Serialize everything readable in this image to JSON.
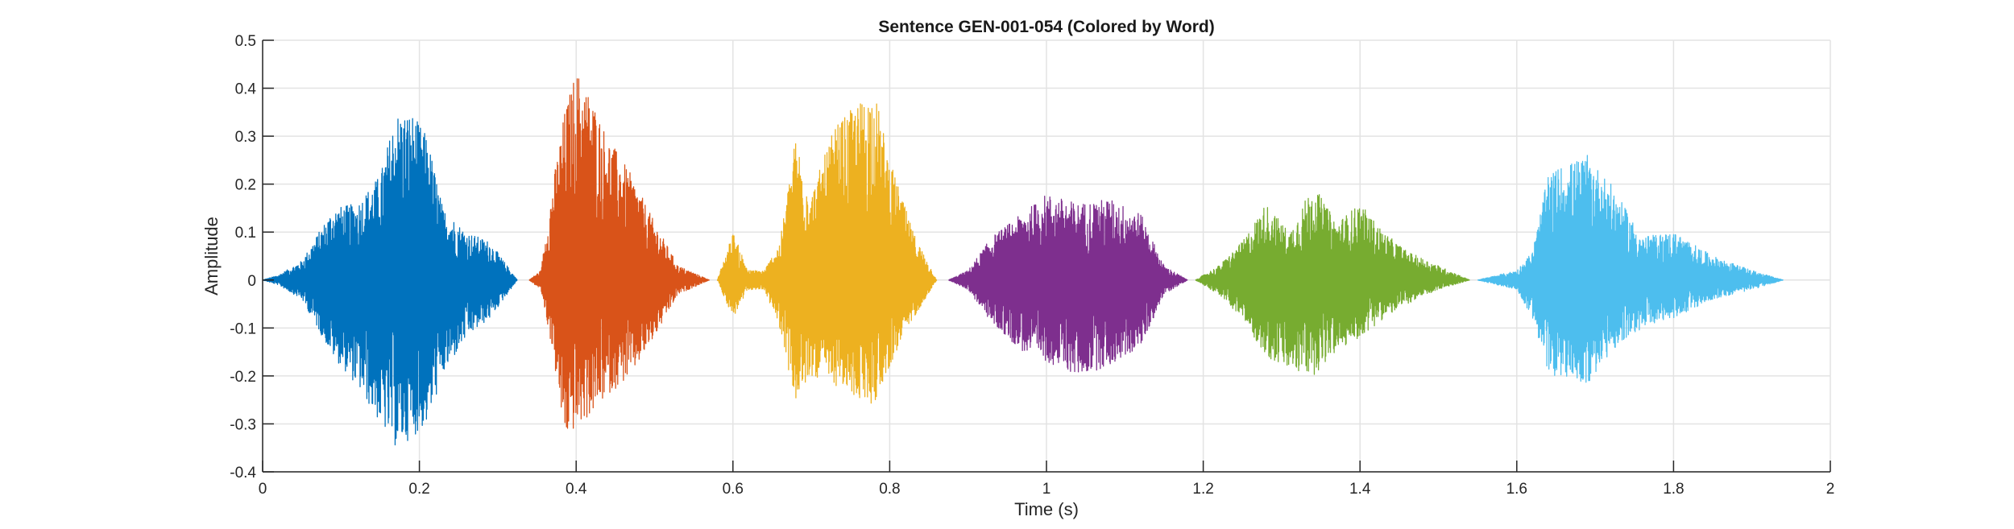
{
  "chart_data": {
    "type": "line",
    "title": "Sentence GEN-001-054 (Colored by Word)",
    "xlabel": "Time (s)",
    "ylabel": "Amplitude",
    "xlim": [
      0,
      2
    ],
    "ylim": [
      -0.4,
      0.5
    ],
    "xticks": [
      0,
      0.2,
      0.4,
      0.6,
      0.8,
      1,
      1.2,
      1.4,
      1.6,
      1.8,
      2
    ],
    "xtick_labels": [
      "0",
      "0.2",
      "0.4",
      "0.6",
      "0.8",
      "1",
      "1.2",
      "1.4",
      "1.6",
      "1.8",
      "2"
    ],
    "yticks": [
      -0.4,
      -0.3,
      -0.2,
      -0.1,
      0,
      0.1,
      0.2,
      0.3,
      0.4,
      0.5
    ],
    "ytick_labels": [
      "-0.4",
      "-0.3",
      "-0.2",
      "-0.1",
      "0",
      "0.1",
      "0.2",
      "0.3",
      "0.4",
      "0.5"
    ],
    "grid": true,
    "legend": "none",
    "series": [
      {
        "color": "#0072BD",
        "start": 0.0,
        "end": 0.325,
        "envelope_t": [
          0.0,
          0.02,
          0.05,
          0.09,
          0.12,
          0.15,
          0.17,
          0.19,
          0.21,
          0.23,
          0.26,
          0.29,
          0.325
        ],
        "envelope_pos": [
          0.0,
          0.01,
          0.04,
          0.15,
          0.16,
          0.22,
          0.35,
          0.35,
          0.3,
          0.15,
          0.1,
          0.08,
          0.0
        ],
        "envelope_neg": [
          0.0,
          -0.01,
          -0.04,
          -0.16,
          -0.22,
          -0.3,
          -0.35,
          -0.33,
          -0.3,
          -0.2,
          -0.12,
          -0.08,
          0.0
        ]
      },
      {
        "color": "#D95319",
        "start": 0.34,
        "end": 0.57,
        "envelope_t": [
          0.34,
          0.355,
          0.37,
          0.385,
          0.4,
          0.42,
          0.44,
          0.47,
          0.5,
          0.53,
          0.57
        ],
        "envelope_pos": [
          0.0,
          0.02,
          0.2,
          0.35,
          0.44,
          0.38,
          0.3,
          0.22,
          0.12,
          0.03,
          0.0
        ],
        "envelope_neg": [
          0.0,
          -0.02,
          -0.15,
          -0.33,
          -0.31,
          -0.28,
          -0.24,
          -0.2,
          -0.12,
          -0.03,
          0.0
        ]
      },
      {
        "color": "#EDB120",
        "start": 0.58,
        "end": 0.86,
        "envelope_t": [
          0.58,
          0.6,
          0.62,
          0.64,
          0.66,
          0.68,
          0.7,
          0.73,
          0.76,
          0.78,
          0.8,
          0.83,
          0.86
        ],
        "envelope_pos": [
          0.0,
          0.1,
          0.02,
          0.02,
          0.08,
          0.3,
          0.18,
          0.32,
          0.37,
          0.4,
          0.25,
          0.1,
          0.0
        ],
        "envelope_neg": [
          0.0,
          -0.08,
          -0.02,
          -0.02,
          -0.1,
          -0.26,
          -0.2,
          -0.22,
          -0.25,
          -0.26,
          -0.18,
          -0.08,
          0.0
        ]
      },
      {
        "color": "#7E2F8E",
        "start": 0.875,
        "end": 1.18,
        "envelope_t": [
          0.875,
          0.9,
          0.93,
          0.97,
          1.0,
          1.04,
          1.08,
          1.12,
          1.15,
          1.18
        ],
        "envelope_pos": [
          0.0,
          0.02,
          0.09,
          0.14,
          0.18,
          0.16,
          0.17,
          0.14,
          0.03,
          0.0
        ],
        "envelope_neg": [
          0.0,
          -0.02,
          -0.09,
          -0.15,
          -0.17,
          -0.2,
          -0.18,
          -0.14,
          -0.03,
          0.0
        ]
      },
      {
        "color": "#77AC30",
        "start": 1.19,
        "end": 1.54,
        "envelope_t": [
          1.19,
          1.22,
          1.25,
          1.28,
          1.31,
          1.34,
          1.37,
          1.4,
          1.43,
          1.46,
          1.5,
          1.54
        ],
        "envelope_pos": [
          0.0,
          0.03,
          0.08,
          0.16,
          0.1,
          0.2,
          0.12,
          0.16,
          0.1,
          0.06,
          0.03,
          0.0
        ],
        "envelope_neg": [
          0.0,
          -0.03,
          -0.08,
          -0.16,
          -0.19,
          -0.2,
          -0.15,
          -0.12,
          -0.08,
          -0.05,
          -0.02,
          0.0
        ]
      },
      {
        "color": "#4DBEEE",
        "start": 1.55,
        "end": 1.94,
        "envelope_t": [
          1.55,
          1.6,
          1.62,
          1.64,
          1.66,
          1.69,
          1.72,
          1.76,
          1.8,
          1.85,
          1.9,
          1.94
        ],
        "envelope_pos": [
          0.0,
          0.02,
          0.06,
          0.22,
          0.24,
          0.26,
          0.2,
          0.09,
          0.1,
          0.05,
          0.02,
          0.0
        ],
        "envelope_neg": [
          0.0,
          -0.02,
          -0.08,
          -0.2,
          -0.2,
          -0.22,
          -0.15,
          -0.1,
          -0.08,
          -0.04,
          -0.02,
          0.0
        ]
      }
    ]
  }
}
